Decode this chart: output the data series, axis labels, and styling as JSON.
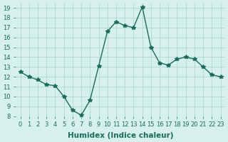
{
  "x": [
    0,
    1,
    2,
    3,
    4,
    5,
    6,
    7,
    8,
    9,
    10,
    11,
    12,
    13,
    14,
    15,
    16,
    17,
    18,
    19,
    20,
    21,
    22,
    23
  ],
  "y": [
    12.5,
    12.0,
    11.7,
    11.2,
    11.1,
    10.0,
    8.6,
    8.1,
    9.6,
    13.1,
    16.6,
    17.6,
    17.2,
    17.0,
    19.1,
    15.0,
    13.4,
    13.2,
    13.8,
    14.0,
    13.8,
    13.0,
    12.2,
    12.0
  ],
  "line_color": "#1a6b5a",
  "marker": "*",
  "bg_color": "#d6f0ee",
  "grid_color": "#aad4ce",
  "xlabel": "Humidex (Indice chaleur)",
  "xlim": [
    -0.5,
    23.5
  ],
  "ylim": [
    8,
    19.5
  ],
  "yticks": [
    8,
    9,
    10,
    11,
    12,
    13,
    14,
    15,
    16,
    17,
    18,
    19
  ],
  "xticks": [
    0,
    1,
    2,
    3,
    4,
    5,
    6,
    7,
    8,
    9,
    10,
    11,
    12,
    13,
    14,
    15,
    16,
    17,
    18,
    19,
    20,
    21,
    22,
    23
  ],
  "xtick_labels": [
    "0",
    "1",
    "2",
    "3",
    "4",
    "5",
    "6",
    "7",
    "8",
    "9",
    "10",
    "11",
    "12",
    "13",
    "14",
    "15",
    "16",
    "17",
    "18",
    "19",
    "20",
    "21",
    "22",
    "23"
  ],
  "tick_fontsize": 6,
  "xlabel_fontsize": 7.5,
  "line_width": 1.0,
  "marker_size": 4
}
